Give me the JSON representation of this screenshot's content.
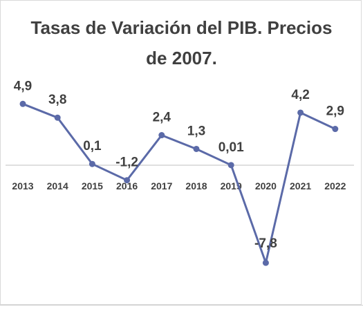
{
  "chart_data": {
    "type": "line",
    "title_line1": "Tasas de Variación del PIB. Precios",
    "title_line2": "de 2007.",
    "categories": [
      "2013",
      "2014",
      "2015",
      "2016",
      "2017",
      "2018",
      "2019",
      "2020",
      "2021",
      "2022"
    ],
    "values": [
      4.9,
      3.8,
      0.1,
      -1.2,
      2.4,
      1.3,
      0.01,
      -7.8,
      4.2,
      2.9
    ],
    "data_labels": [
      "4,9",
      "3,8",
      "0,1",
      "-1,2",
      "2,4",
      "1,3",
      "0,01",
      "-7,8",
      "4,2",
      "2,9"
    ],
    "ylim": [
      -9,
      6
    ],
    "grid": false,
    "legend": "none",
    "colors": {
      "line": "#5b6aa8",
      "marker": "#5b6aa8",
      "baseline": "#bfbfbf",
      "text": "#404040"
    }
  }
}
